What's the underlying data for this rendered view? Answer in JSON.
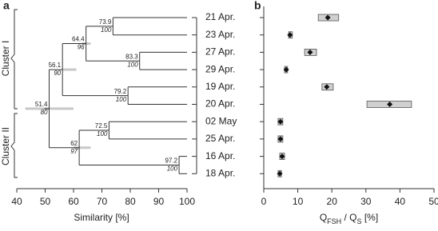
{
  "chart_data": [
    {
      "type": "dendrogram",
      "title": "a",
      "x_label": "Similarity [%]",
      "xlim": [
        40,
        100
      ],
      "xticks": [
        40,
        50,
        60,
        70,
        80,
        90,
        100
      ],
      "cluster_labels": [
        "Cluster I",
        "Cluster II"
      ],
      "tree": {
        "similarity": 51.4,
        "support": 80,
        "range": [
          43,
          60
        ],
        "children": [
          {
            "similarity": 56.1,
            "support": 90,
            "range": [
              56,
              61
            ],
            "children": [
              {
                "similarity": 64.4,
                "support": 96,
                "range": [
                  63,
                  66
                ],
                "children": [
                  {
                    "similarity": 73.9,
                    "support": 100,
                    "children": [
                      {
                        "label": "21 Apr."
                      },
                      {
                        "label": "23 Apr."
                      }
                    ]
                  },
                  {
                    "similarity": 83.3,
                    "support": 100,
                    "children": [
                      {
                        "label": "27 Apr."
                      },
                      {
                        "label": "29 Apr."
                      }
                    ]
                  }
                ]
              },
              {
                "similarity": 79.2,
                "support": 100,
                "children": [
                  {
                    "label": "19 Apr."
                  },
                  {
                    "label": "20 Apr."
                  }
                ]
              }
            ]
          },
          {
            "similarity": 62,
            "support": 97,
            "range": [
              60,
              66
            ],
            "children": [
              {
                "similarity": 72.5,
                "support": 100,
                "children": [
                  {
                    "label": "02 May"
                  },
                  {
                    "label": "25 Apr."
                  }
                ]
              },
              {
                "similarity": 97.2,
                "support": 100,
                "children": [
                  {
                    "label": "16 Apr."
                  },
                  {
                    "label": "18 Apr."
                  }
                ]
              }
            ]
          }
        ]
      }
    },
    {
      "type": "range-dot",
      "title": "b",
      "x_label": [
        "Q",
        "FSH",
        " / Q",
        "S",
        " [%]"
      ],
      "xlim": [
        0,
        50
      ],
      "xticks": [
        0,
        10,
        20,
        30,
        40,
        50
      ],
      "values": [
        18.8,
        7.7,
        13.6,
        6.6,
        18.5,
        37.0,
        4.9,
        4.9,
        5.4,
        4.7
      ],
      "low": [
        16.0,
        7.3,
        12.0,
        6.1,
        17.1,
        30.3,
        4.2,
        4.2,
        4.7,
        4.2
      ],
      "high": [
        22.0,
        8.4,
        15.5,
        7.0,
        20.4,
        43.4,
        5.6,
        5.6,
        6.1,
        5.2
      ]
    }
  ]
}
